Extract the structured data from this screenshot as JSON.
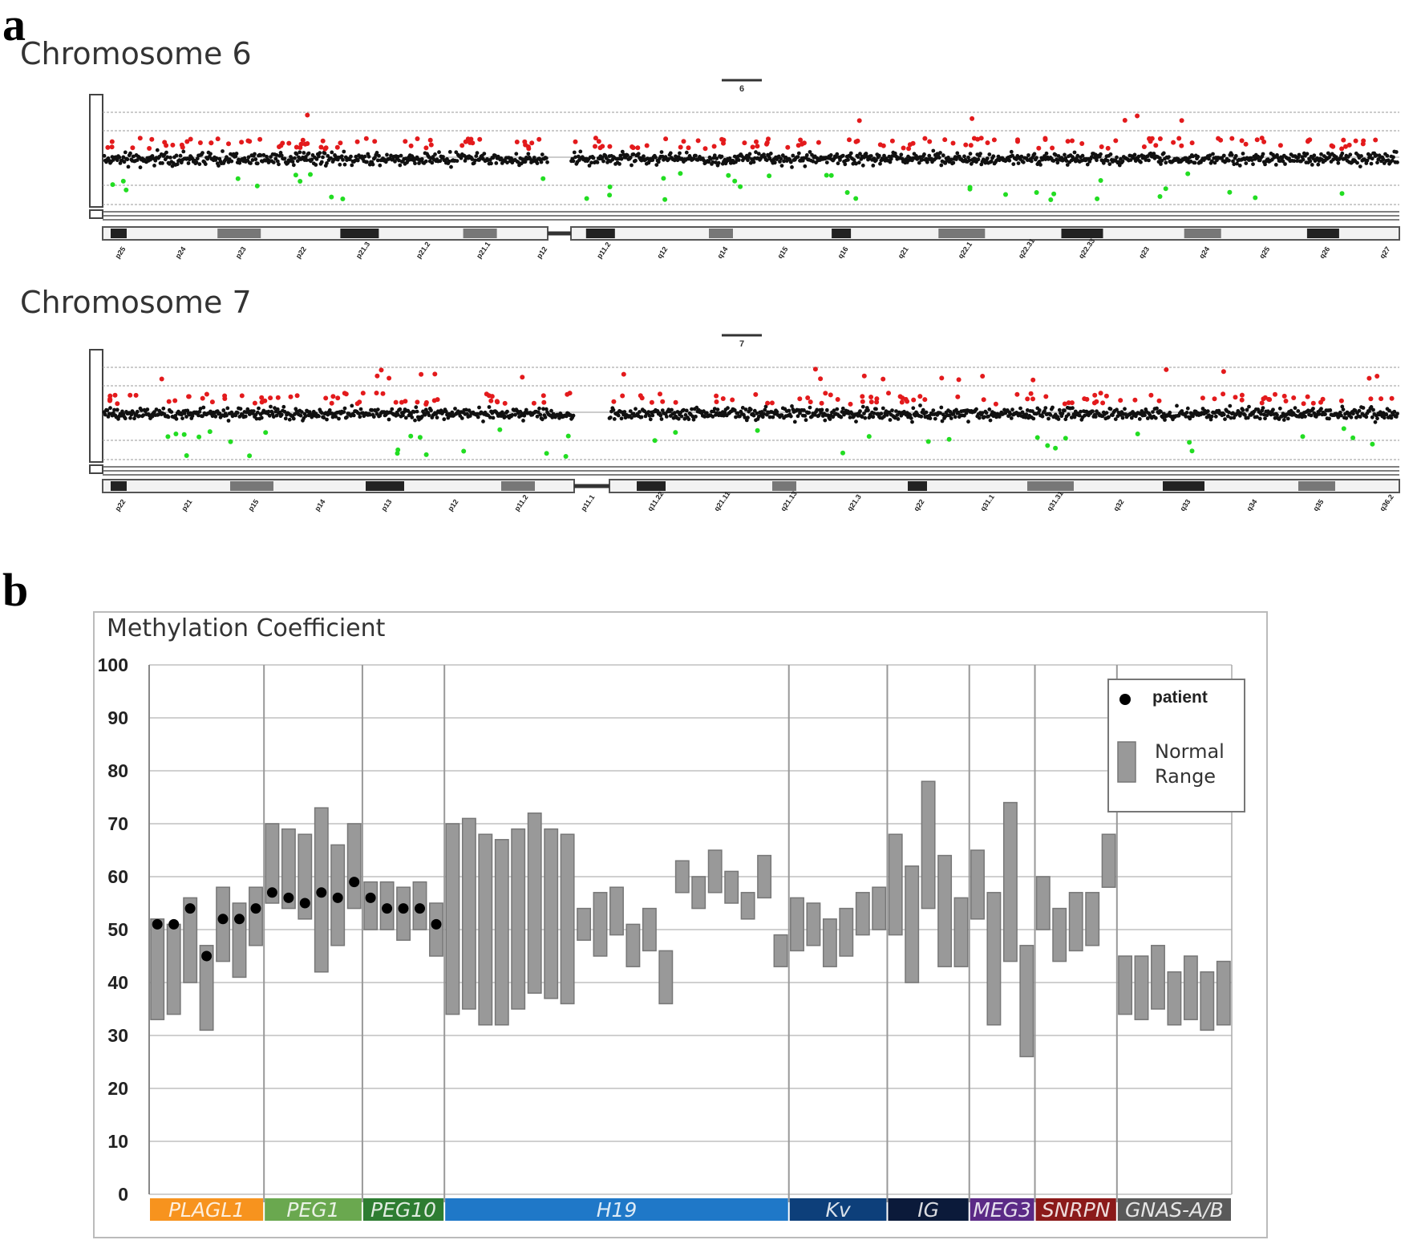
{
  "panel_a": {
    "letter": "a",
    "chromosomes": [
      {
        "title": "Chromosome 6",
        "marker_label": "6",
        "bands": [
          "p25",
          "p24",
          "p23",
          "p22",
          "p21.3",
          "p21.2",
          "p21.1",
          "p12",
          "p11.2",
          "q12",
          "q14",
          "q15",
          "q16",
          "q21",
          "q22.1",
          "q22.31",
          "q22.33",
          "q23",
          "q24",
          "q25",
          "q26",
          "q27"
        ],
        "color_key": {
          "high": "#e31a1c",
          "normal": "#111111",
          "low": "#22dd22"
        }
      },
      {
        "title": "Chromosome 7",
        "marker_label": "7",
        "bands": [
          "p22",
          "p21",
          "p15",
          "p14",
          "p13",
          "p12",
          "p11.2",
          "p11.1",
          "q11.22",
          "q21.11",
          "q21.13",
          "q21.3",
          "q22",
          "q31.1",
          "q31.31",
          "q32",
          "q33",
          "q34",
          "q35",
          "q36.2"
        ],
        "color_key": {
          "high": "#e31a1c",
          "normal": "#111111",
          "low": "#22dd22"
        }
      }
    ]
  },
  "panel_b": {
    "letter": "b",
    "chart_data": {
      "type": "range-dot",
      "title": "Methylation Coefficient",
      "ylim": [
        0,
        100
      ],
      "yticks": [
        100,
        90,
        80,
        70,
        60,
        50,
        40,
        30,
        20,
        10,
        0
      ],
      "legend": {
        "patient": "patient",
        "normal_range": "Normal Range",
        "placement": "top-right"
      },
      "regions": [
        {
          "name": "PLAGL1",
          "color": "#f7931e",
          "ranges": [
            [
              33,
              52
            ],
            [
              34,
              51
            ],
            [
              40,
              56
            ],
            [
              31,
              47
            ],
            [
              44,
              58
            ],
            [
              41,
              55
            ],
            [
              47,
              58
            ]
          ],
          "patient": [
            51,
            51,
            54,
            45,
            52,
            52,
            54
          ]
        },
        {
          "name": "PEG1",
          "color": "#6aa84f",
          "ranges": [
            [
              55,
              70
            ],
            [
              54,
              69
            ],
            [
              52,
              68
            ],
            [
              42,
              73
            ],
            [
              47,
              66
            ],
            [
              54,
              70
            ]
          ],
          "patient": [
            57,
            56,
            55,
            57,
            56,
            59
          ]
        },
        {
          "name": "PEG10",
          "color": "#2e7d32",
          "ranges": [
            [
              50,
              59
            ],
            [
              50,
              59
            ],
            [
              48,
              58
            ],
            [
              50,
              59
            ],
            [
              45,
              55
            ]
          ],
          "patient": [
            56,
            54,
            54,
            54,
            51
          ]
        },
        {
          "name": "H19",
          "color": "#1f78c8",
          "ranges": [
            [
              34,
              70
            ],
            [
              35,
              71
            ],
            [
              32,
              68
            ],
            [
              32,
              67
            ],
            [
              35,
              69
            ],
            [
              38,
              72
            ],
            [
              37,
              69
            ],
            [
              36,
              68
            ],
            [
              48,
              54
            ],
            [
              45,
              57
            ],
            [
              49,
              58
            ],
            [
              43,
              51
            ],
            [
              46,
              54
            ],
            [
              36,
              46
            ],
            [
              57,
              63
            ],
            [
              54,
              60
            ],
            [
              57,
              65
            ],
            [
              55,
              61
            ],
            [
              52,
              57
            ],
            [
              56,
              64
            ],
            [
              43,
              49
            ]
          ],
          "patient": []
        },
        {
          "name": "Kv",
          "color": "#0d3f7a",
          "ranges": [
            [
              46,
              56
            ],
            [
              47,
              55
            ],
            [
              43,
              52
            ],
            [
              45,
              54
            ],
            [
              49,
              57
            ],
            [
              50,
              58
            ]
          ],
          "patient": []
        },
        {
          "name": "IG",
          "color": "#0b1a3a",
          "ranges": [
            [
              49,
              68
            ],
            [
              40,
              62
            ],
            [
              54,
              78
            ],
            [
              43,
              64
            ],
            [
              43,
              56
            ]
          ],
          "patient": []
        },
        {
          "name": "MEG3",
          "color": "#5b2a86",
          "ranges": [
            [
              52,
              65
            ],
            [
              32,
              57
            ],
            [
              44,
              74
            ],
            [
              26,
              47
            ]
          ],
          "patient": []
        },
        {
          "name": "SNRPN",
          "color": "#8b1a1a",
          "ranges": [
            [
              50,
              60
            ],
            [
              44,
              54
            ],
            [
              46,
              57
            ],
            [
              47,
              57
            ],
            [
              58,
              68
            ]
          ],
          "patient": []
        },
        {
          "name": "GNAS-A/B",
          "color": "#595959",
          "ranges": [
            [
              34,
              45
            ],
            [
              33,
              45
            ],
            [
              35,
              47
            ],
            [
              32,
              42
            ],
            [
              33,
              45
            ],
            [
              31,
              42
            ],
            [
              32,
              44
            ]
          ],
          "patient": []
        }
      ]
    }
  }
}
